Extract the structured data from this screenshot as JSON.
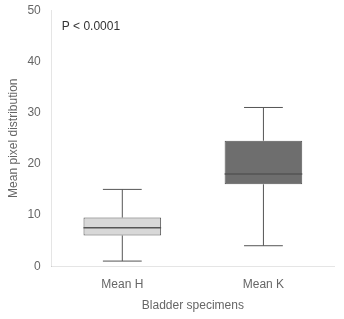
{
  "chart_data": {
    "type": "box",
    "xlabel": "Bladder specimens",
    "ylabel": "Mean pixel distribution",
    "annotation": "P < 0.0001",
    "categories": [
      "Mean H",
      "Mean K"
    ],
    "whisker_low": [
      1.0,
      4.0
    ],
    "q1": [
      6.0,
      16.0
    ],
    "median": [
      7.5,
      18.0
    ],
    "q3": [
      9.5,
      24.5
    ],
    "whisker_high": [
      15.0,
      31.0
    ],
    "colors": [
      "#d8d8d8",
      "#6e6e6e"
    ],
    "ylim": [
      0,
      50
    ],
    "yticks": [
      0,
      10,
      20,
      30,
      40,
      50
    ],
    "grid": false
  }
}
